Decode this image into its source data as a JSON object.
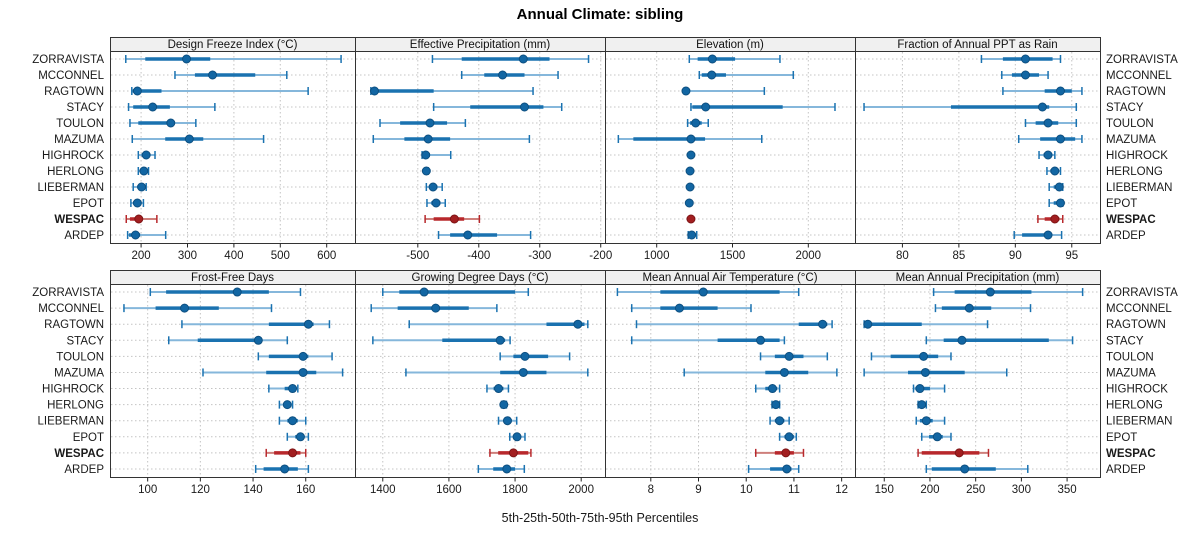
{
  "title": "Annual Climate: sibling",
  "caption": "5th-25th-50th-75th-95th Percentiles",
  "colors": {
    "normal_main": "#1a72b0",
    "normal_light": "#85b7db",
    "normal_dot_fill": "#1266a3",
    "normal_dot_stroke": "#0d4f80",
    "highlight_main": "#b8282c",
    "highlight_light": "#ce7f7b",
    "highlight_dot_fill": "#a21e20",
    "highlight_dot_stroke": "#7d1415",
    "strip_bg": "#f0f0f0",
    "panel_border": "#333333",
    "grid": "#c4c4c4",
    "tick": "#222222",
    "label_text": "#1a1a1a"
  },
  "stations": [
    {
      "name": "ZORRAVISTA",
      "highlight": false
    },
    {
      "name": "MCCONNEL",
      "highlight": false
    },
    {
      "name": "RAGTOWN",
      "highlight": false
    },
    {
      "name": "STACY",
      "highlight": false
    },
    {
      "name": "TOULON",
      "highlight": false
    },
    {
      "name": "MAZUMA",
      "highlight": false
    },
    {
      "name": "HIGHROCK",
      "highlight": false
    },
    {
      "name": "HERLONG",
      "highlight": false
    },
    {
      "name": "LIEBERMAN",
      "highlight": false
    },
    {
      "name": "EPOT",
      "highlight": false
    },
    {
      "name": "WESPAC",
      "highlight": true
    },
    {
      "name": "ARDEP",
      "highlight": false
    }
  ],
  "chart_data": {
    "type": "dotplot-percentiles",
    "percentiles": [
      5,
      25,
      50,
      75,
      95
    ],
    "legend_note": "thin line = 5th-95th, thick line = 25th-75th, dot = median",
    "panels": [
      {
        "title": "Design Freeze Index (°C)",
        "xlim": [
          133,
          661
        ],
        "ticks": [
          200,
          300,
          400,
          500,
          600
        ],
        "values": [
          [
            167,
            209,
            298,
            349,
            631
          ],
          [
            273,
            316,
            354,
            446,
            514
          ],
          [
            180,
            182,
            192,
            244,
            560
          ],
          [
            173,
            183,
            225,
            262,
            359
          ],
          [
            176,
            194,
            264,
            273,
            318
          ],
          [
            181,
            252,
            304,
            334,
            464
          ],
          [
            194,
            201,
            211,
            219,
            230
          ],
          [
            194,
            199,
            206,
            211,
            216
          ],
          [
            183,
            192,
            201,
            206,
            211
          ],
          [
            178,
            183,
            192,
            199,
            205
          ],
          [
            168,
            176,
            195,
            201,
            234
          ],
          [
            171,
            174,
            188,
            198,
            253
          ]
        ]
      },
      {
        "title": "Effective Precipitation (mm)",
        "xlim": [
          -603,
          -193
        ],
        "ticks": [
          -500,
          -400,
          -300,
          -200
        ],
        "values": [
          [
            -476,
            -428,
            -327,
            -284,
            -220
          ],
          [
            -428,
            -391,
            -361,
            -325,
            -270
          ],
          [
            -577,
            -574,
            -571,
            -474,
            -311
          ],
          [
            -474,
            -414,
            -325,
            -294,
            -264
          ],
          [
            -562,
            -529,
            -480,
            -452,
            -422
          ],
          [
            -573,
            -522,
            -483,
            -447,
            -317
          ],
          [
            -493,
            -490,
            -487,
            -480,
            -446
          ],
          [
            -488,
            -487,
            -486,
            -485,
            -483
          ],
          [
            -486,
            -481,
            -475,
            -468,
            -460
          ],
          [
            -485,
            -478,
            -470,
            -463,
            -455
          ],
          [
            -488,
            -474,
            -440,
            -424,
            -399
          ],
          [
            -466,
            -447,
            -418,
            -370,
            -315
          ]
        ]
      },
      {
        "title": "Elevation (m)",
        "xlim": [
          659,
          2308
        ],
        "ticks": [
          1000,
          1500,
          2000
        ],
        "values": [
          [
            1215,
            1270,
            1367,
            1517,
            1813
          ],
          [
            1281,
            1297,
            1363,
            1457,
            1901
          ],
          [
            1182,
            1186,
            1193,
            1208,
            1710
          ],
          [
            1226,
            1235,
            1323,
            1831,
            2176
          ],
          [
            1204,
            1220,
            1257,
            1297,
            1340
          ],
          [
            747,
            846,
            1226,
            1319,
            1693
          ],
          [
            1220,
            1223,
            1226,
            1229,
            1232
          ],
          [
            1216,
            1218,
            1220,
            1222,
            1224
          ],
          [
            1216,
            1218,
            1220,
            1222,
            1224
          ],
          [
            1211,
            1213,
            1215,
            1217,
            1219
          ],
          [
            1222,
            1224,
            1226,
            1228,
            1230
          ],
          [
            1208,
            1215,
            1231,
            1245,
            1264
          ]
        ]
      },
      {
        "title": "Fraction of Annual PPT as Rain",
        "xlim": [
          75.8,
          97.5
        ],
        "ticks": [
          80,
          85,
          90,
          95
        ],
        "values": [
          [
            87.0,
            88.9,
            90.9,
            93.3,
            94.0
          ],
          [
            88.8,
            89.7,
            90.9,
            92.1,
            92.9
          ],
          [
            88.9,
            92.6,
            94.0,
            95.0,
            95.9
          ],
          [
            76.6,
            84.3,
            92.4,
            93.0,
            95.4
          ],
          [
            90.9,
            91.8,
            92.9,
            93.8,
            95.4
          ],
          [
            90.3,
            92.2,
            94.0,
            95.3,
            95.9
          ],
          [
            92.1,
            92.5,
            92.9,
            93.2,
            93.5
          ],
          [
            92.8,
            93.1,
            93.5,
            93.8,
            94.0
          ],
          [
            93.0,
            93.4,
            93.9,
            94.0,
            94.2
          ],
          [
            93.0,
            93.4,
            94.0,
            94.1,
            94.2
          ],
          [
            92.0,
            92.6,
            93.5,
            93.9,
            94.2
          ],
          [
            89.9,
            90.6,
            92.9,
            93.0,
            94.1
          ]
        ]
      },
      {
        "title": "Frost-Free Days",
        "xlim": [
          85.7,
          178.7
        ],
        "ticks": [
          100,
          120,
          140,
          160
        ],
        "values": [
          [
            101,
            107,
            134,
            146,
            158
          ],
          [
            91,
            103,
            114,
            127,
            147
          ],
          [
            113,
            146,
            161,
            163,
            169
          ],
          [
            108,
            119,
            142,
            143,
            153
          ],
          [
            142,
            146,
            159,
            161,
            170
          ],
          [
            121,
            145,
            159,
            164,
            174
          ],
          [
            146,
            152,
            155,
            156,
            157
          ],
          [
            150,
            152,
            153,
            154,
            155
          ],
          [
            150,
            153,
            155,
            157,
            160
          ],
          [
            153,
            156,
            158,
            159,
            161
          ],
          [
            145,
            148,
            155,
            158,
            160
          ],
          [
            141,
            144,
            152,
            157,
            161
          ]
        ]
      },
      {
        "title": "Growing Degree Days (°C)",
        "xlim": [
          1316,
          2072
        ],
        "ticks": [
          1400,
          1600,
          1800,
          2000
        ],
        "values": [
          [
            1400,
            1450,
            1525,
            1800,
            1840
          ],
          [
            1365,
            1445,
            1560,
            1660,
            1745
          ],
          [
            1480,
            1895,
            1990,
            2010,
            2020
          ],
          [
            1370,
            1580,
            1755,
            1770,
            1785
          ],
          [
            1755,
            1795,
            1830,
            1900,
            1965
          ],
          [
            1470,
            1755,
            1825,
            1895,
            2020
          ],
          [
            1715,
            1735,
            1750,
            1765,
            1780
          ],
          [
            1759,
            1762,
            1766,
            1770,
            1774
          ],
          [
            1750,
            1768,
            1777,
            1790,
            1805
          ],
          [
            1784,
            1797,
            1806,
            1818,
            1830
          ],
          [
            1724,
            1749,
            1795,
            1840,
            1848
          ],
          [
            1689,
            1734,
            1775,
            1800,
            1828
          ]
        ]
      },
      {
        "title": "Mean Annual Air Temperature (°C)",
        "xlim": [
          7.04,
          12.28
        ],
        "ticks": [
          8,
          9,
          10,
          11,
          12
        ],
        "values": [
          [
            7.3,
            8.2,
            9.1,
            10.7,
            11.1
          ],
          [
            7.6,
            8.2,
            8.6,
            9.4,
            10.1
          ],
          [
            7.7,
            11.1,
            11.6,
            11.7,
            11.8
          ],
          [
            7.6,
            9.4,
            10.3,
            10.7,
            10.8
          ],
          [
            10.3,
            10.6,
            10.9,
            11.2,
            11.7
          ],
          [
            8.7,
            10.4,
            10.8,
            11.3,
            11.9
          ],
          [
            10.2,
            10.4,
            10.55,
            10.65,
            10.7
          ],
          [
            10.54,
            10.58,
            10.62,
            10.66,
            10.7
          ],
          [
            10.5,
            10.6,
            10.7,
            10.8,
            10.9
          ],
          [
            10.7,
            10.8,
            10.9,
            11.0,
            11.05
          ],
          [
            10.2,
            10.6,
            10.83,
            11.0,
            11.2
          ],
          [
            10.05,
            10.5,
            10.85,
            10.95,
            11.1
          ]
        ]
      },
      {
        "title": "Mean Annual Precipitation (mm)",
        "xlim": [
          118,
          386
        ],
        "ticks": [
          150,
          200,
          250,
          300,
          350
        ],
        "values": [
          [
            204,
            227,
            266,
            311,
            367
          ],
          [
            206,
            213,
            243,
            267,
            310
          ],
          [
            128,
            130,
            132,
            191,
            263
          ],
          [
            196,
            215,
            235,
            330,
            356
          ],
          [
            136,
            157,
            193,
            209,
            223
          ],
          [
            128,
            176,
            195,
            238,
            284
          ],
          [
            182,
            184,
            189,
            200,
            216
          ],
          [
            187,
            189,
            191,
            194,
            196
          ],
          [
            185,
            189,
            196,
            203,
            216
          ],
          [
            191,
            199,
            208,
            214,
            223
          ],
          [
            187,
            191,
            232,
            254,
            264
          ],
          [
            196,
            202,
            238,
            272,
            307
          ]
        ]
      }
    ]
  }
}
